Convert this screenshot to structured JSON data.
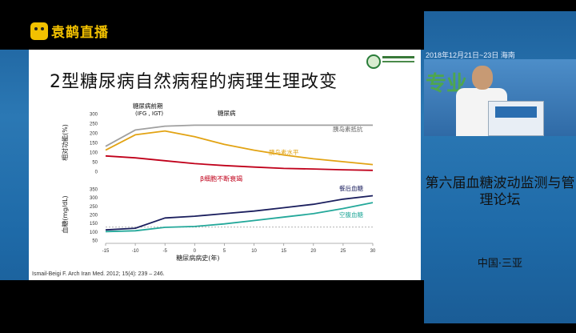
{
  "logo": {
    "text": "袁鹋直播",
    "icon": "broadcast-logo-icon"
  },
  "slide": {
    "title": "2型糖尿病自然病程的病理生理改变",
    "citation": "Ismail-Beigi F. Arch Iran Med. 2012; 15(4): 239 – 246."
  },
  "chart_data": [
    {
      "type": "line",
      "ylabel": "相对功能(%)",
      "ylim": [
        0,
        300
      ],
      "yticks": [
        "0",
        "50",
        "100",
        "150",
        "200",
        "250",
        "300"
      ],
      "x": [
        -15,
        -10,
        -5,
        0,
        5,
        10,
        15,
        20,
        25,
        30
      ],
      "series": [
        {
          "name": "胰岛素抵抗",
          "color": "#a0a0a0",
          "values": [
            130,
            215,
            235,
            240,
            240,
            240,
            240,
            240,
            240,
            240
          ]
        },
        {
          "name": "胰岛素水平",
          "color": "#e2a313",
          "values": [
            110,
            190,
            210,
            180,
            140,
            110,
            85,
            65,
            50,
            35
          ]
        },
        {
          "name": "β细胞不断衰竭",
          "color": "#c0001a",
          "values": [
            80,
            70,
            55,
            40,
            30,
            22,
            15,
            12,
            8,
            5
          ]
        }
      ],
      "annotations": [
        "糖尿病前期",
        "(IFG , IGT)",
        "糖尿病"
      ]
    },
    {
      "type": "line",
      "ylabel": "血糖(mg/dL)",
      "ylim": [
        50,
        350
      ],
      "yticks": [
        "50",
        "100",
        "150",
        "200",
        "250",
        "300",
        "350"
      ],
      "xlabel": "糖尿病病史(年)",
      "xticks": [
        "-15",
        "-10",
        "-5",
        "0",
        "5",
        "10",
        "15",
        "20",
        "25",
        "30"
      ],
      "x": [
        -15,
        -10,
        -5,
        0,
        5,
        10,
        15,
        20,
        25,
        30
      ],
      "series": [
        {
          "name": "餐后血糖",
          "color": "#1b1f5e",
          "values": [
            110,
            120,
            180,
            190,
            205,
            220,
            240,
            260,
            290,
            310
          ]
        },
        {
          "name": "空腹血糖",
          "color": "#23a89a",
          "values": [
            100,
            105,
            125,
            130,
            145,
            165,
            185,
            205,
            235,
            270
          ]
        }
      ],
      "threshold": 126,
      "threshold_color": "#9a9a9a"
    }
  ],
  "right_panel": {
    "banner": "2018年12月21日~23日  海南",
    "deco_chars": "专业",
    "forum_title": "第六届血糖波动监测与管理论坛",
    "location": "中国·三亚"
  }
}
